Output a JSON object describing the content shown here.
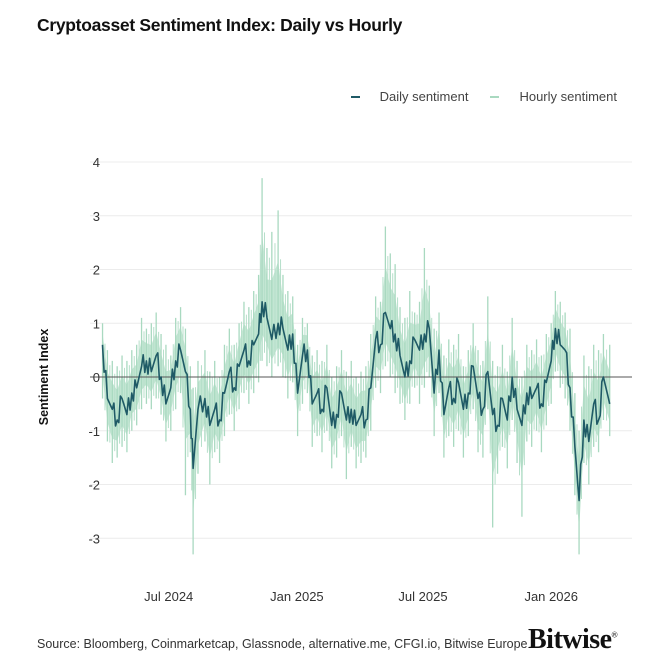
{
  "title": "Cryptoasset Sentiment Index: Daily vs Hourly",
  "legend": [
    {
      "label": "Daily sentiment",
      "color": "#1f5a66"
    },
    {
      "label": "Hourly sentiment",
      "color": "#a9d9c0"
    }
  ],
  "source": "Source: Bloomberg, Coinmarketcap, Glassnode, alternative.me, CFGI.io, Bitwise Europe",
  "logo": "Bitwise",
  "chart_data": {
    "type": "line",
    "title": "Cryptoasset Sentiment Index: Daily vs Hourly",
    "xlabel": "",
    "ylabel": "Sentiment Index",
    "ylim": [
      -3.7,
      4.3
    ],
    "yticks": [
      4,
      3,
      2,
      1,
      0,
      -1,
      -2,
      -3
    ],
    "xticks": [
      {
        "label": "Jul 2024",
        "date": "2024-07-01"
      },
      {
        "label": "Jan 2025",
        "date": "2025-01-01"
      },
      {
        "label": "Jul 2025",
        "date": "2025-07-01"
      },
      {
        "label": "Jan 2026",
        "date": "2026-01-01"
      }
    ],
    "xlim": [
      "2024-03-10",
      "2026-04-27"
    ],
    "grid": true,
    "legend_position": "top-right",
    "series_fields": [
      "date",
      "daily",
      "hourly_min",
      "hourly_max"
    ],
    "points": [
      [
        "2024-03-28",
        0.6,
        -0.4,
        1.0
      ],
      [
        "2024-04-04",
        -0.4,
        -1.2,
        0.5
      ],
      [
        "2024-04-11",
        -0.6,
        -1.6,
        0.3
      ],
      [
        "2024-04-18",
        -0.8,
        -1.5,
        0.2
      ],
      [
        "2024-04-25",
        -0.4,
        -1.3,
        0.4
      ],
      [
        "2024-05-02",
        -0.7,
        -1.4,
        0.3
      ],
      [
        "2024-05-09",
        -0.3,
        -1.0,
        0.5
      ],
      [
        "2024-05-16",
        -0.2,
        -0.9,
        0.6
      ],
      [
        "2024-05-23",
        0.2,
        -0.6,
        1.1
      ],
      [
        "2024-05-30",
        0.3,
        -0.5,
        0.9
      ],
      [
        "2024-06-06",
        0.1,
        -0.6,
        1.0
      ],
      [
        "2024-06-13",
        0.4,
        -0.4,
        1.2
      ],
      [
        "2024-06-20",
        0.0,
        -0.7,
        0.8
      ],
      [
        "2024-06-27",
        -0.5,
        -1.2,
        0.6
      ],
      [
        "2024-07-04",
        -0.2,
        -1.0,
        0.4
      ],
      [
        "2024-07-11",
        0.3,
        -0.6,
        1.1
      ],
      [
        "2024-07-18",
        0.5,
        -0.3,
        1.3
      ],
      [
        "2024-07-25",
        0.1,
        -2.2,
        0.9
      ],
      [
        "2024-08-01",
        -0.6,
        -1.4,
        0.2
      ],
      [
        "2024-08-05",
        -1.7,
        -3.3,
        -0.2
      ],
      [
        "2024-08-12",
        -0.6,
        -1.8,
        0.3
      ],
      [
        "2024-08-22",
        -0.4,
        -1.2,
        0.5
      ],
      [
        "2024-08-29",
        -0.9,
        -2.0,
        0.1
      ],
      [
        "2024-09-05",
        -0.6,
        -1.4,
        0.3
      ],
      [
        "2024-09-12",
        -0.8,
        -1.6,
        0.0
      ],
      [
        "2024-09-19",
        -0.3,
        -1.1,
        0.6
      ],
      [
        "2024-09-26",
        0.1,
        -0.7,
        0.9
      ],
      [
        "2024-10-03",
        -0.2,
        -1.0,
        0.6
      ],
      [
        "2024-10-10",
        0.2,
        -0.6,
        1.0
      ],
      [
        "2024-10-17",
        0.5,
        -0.3,
        1.4
      ],
      [
        "2024-10-24",
        0.3,
        -0.5,
        1.3
      ],
      [
        "2024-10-31",
        0.6,
        -0.3,
        1.6
      ],
      [
        "2024-11-07",
        0.8,
        -0.1,
        1.9
      ],
      [
        "2024-11-12",
        1.4,
        0.3,
        3.7
      ],
      [
        "2024-11-19",
        1.1,
        0.2,
        2.4
      ],
      [
        "2024-11-26",
        0.7,
        0.0,
        2.7
      ],
      [
        "2024-12-05",
        1.0,
        0.2,
        3.1
      ],
      [
        "2024-12-12",
        0.9,
        0.0,
        1.9
      ],
      [
        "2024-12-19",
        0.5,
        -0.4,
        1.6
      ],
      [
        "2024-12-26",
        0.8,
        -0.1,
        1.5
      ],
      [
        "2025-01-02",
        -0.3,
        -1.1,
        0.6
      ],
      [
        "2025-01-09",
        0.4,
        -0.5,
        1.1
      ],
      [
        "2025-01-16",
        0.5,
        -0.3,
        1.0
      ],
      [
        "2025-01-23",
        -0.5,
        -1.3,
        0.4
      ],
      [
        "2025-01-30",
        -0.3,
        -1.1,
        0.5
      ],
      [
        "2025-02-06",
        -0.6,
        -1.4,
        0.3
      ],
      [
        "2025-02-13",
        -0.2,
        -1.0,
        0.6
      ],
      [
        "2025-02-20",
        -0.9,
        -1.7,
        0.0
      ],
      [
        "2025-02-27",
        -0.7,
        -1.5,
        0.2
      ],
      [
        "2025-03-06",
        -0.3,
        -1.1,
        0.5
      ],
      [
        "2025-03-13",
        -0.8,
        -1.9,
        0.1
      ],
      [
        "2025-03-20",
        -0.6,
        -1.3,
        0.3
      ],
      [
        "2025-03-27",
        -0.9,
        -1.7,
        0.0
      ],
      [
        "2025-04-03",
        -0.7,
        -1.6,
        0.1
      ],
      [
        "2025-04-10",
        -0.8,
        -1.5,
        0.2
      ],
      [
        "2025-04-17",
        -0.2,
        -1.0,
        0.8
      ],
      [
        "2025-04-24",
        0.7,
        -0.2,
        1.5
      ],
      [
        "2025-05-01",
        0.6,
        -0.3,
        1.4
      ],
      [
        "2025-05-08",
        1.2,
        0.2,
        2.8
      ],
      [
        "2025-05-15",
        0.9,
        0.0,
        2.3
      ],
      [
        "2025-05-22",
        0.8,
        -0.3,
        2.1
      ],
      [
        "2025-05-29",
        0.4,
        -0.5,
        1.3
      ],
      [
        "2025-06-05",
        0.0,
        -0.8,
        1.1
      ],
      [
        "2025-06-12",
        0.3,
        -0.5,
        1.6
      ],
      [
        "2025-06-19",
        0.7,
        -0.2,
        1.2
      ],
      [
        "2025-06-26",
        0.5,
        -0.5,
        1.4
      ],
      [
        "2025-07-03",
        0.8,
        -0.2,
        2.4
      ],
      [
        "2025-07-10",
        0.9,
        0.0,
        1.7
      ],
      [
        "2025-07-17",
        -0.3,
        -1.1,
        0.9
      ],
      [
        "2025-07-24",
        0.5,
        -0.3,
        1.2
      ],
      [
        "2025-07-31",
        -0.7,
        -1.5,
        0.4
      ],
      [
        "2025-08-07",
        -0.2,
        -1.1,
        0.7
      ],
      [
        "2025-08-14",
        -0.4,
        -1.3,
        0.6
      ],
      [
        "2025-08-21",
        -0.1,
        -1.0,
        0.8
      ],
      [
        "2025-08-28",
        -0.6,
        -1.5,
        0.2
      ],
      [
        "2025-09-04",
        -0.3,
        -1.1,
        0.5
      ],
      [
        "2025-09-11",
        0.2,
        -0.6,
        1.0
      ],
      [
        "2025-09-18",
        -0.4,
        -1.4,
        0.5
      ],
      [
        "2025-09-25",
        -0.6,
        -1.5,
        0.3
      ],
      [
        "2025-10-02",
        0.1,
        -0.6,
        1.5
      ],
      [
        "2025-10-09",
        -0.7,
        -2.8,
        0.3
      ],
      [
        "2025-10-16",
        -0.9,
        -1.8,
        0.2
      ],
      [
        "2025-10-23",
        -0.4,
        -1.3,
        0.6
      ],
      [
        "2025-10-30",
        -0.8,
        -1.7,
        0.1
      ],
      [
        "2025-11-06",
        0.0,
        -0.8,
        1.1
      ],
      [
        "2025-11-13",
        -0.6,
        -1.6,
        0.3
      ],
      [
        "2025-11-20",
        -0.9,
        -2.6,
        0.0
      ],
      [
        "2025-11-27",
        -0.3,
        -1.2,
        0.6
      ],
      [
        "2025-12-04",
        -0.4,
        -1.3,
        0.5
      ],
      [
        "2025-12-11",
        -0.2,
        -1.0,
        0.7
      ],
      [
        "2025-12-18",
        -0.5,
        -1.4,
        0.4
      ],
      [
        "2025-12-25",
        -0.1,
        -0.9,
        0.8
      ],
      [
        "2026-01-01",
        0.3,
        -0.5,
        1.0
      ],
      [
        "2026-01-07",
        0.9,
        0.1,
        1.6
      ],
      [
        "2026-01-14",
        0.6,
        -0.2,
        1.4
      ],
      [
        "2026-01-21",
        0.5,
        -0.4,
        1.2
      ],
      [
        "2026-01-28",
        -0.2,
        -1.0,
        0.9
      ],
      [
        "2026-02-04",
        -1.3,
        -2.2,
        -0.3
      ],
      [
        "2026-02-10",
        -2.3,
        -3.3,
        -1.0
      ],
      [
        "2026-02-17",
        -0.8,
        -1.6,
        0.4
      ],
      [
        "2026-02-24",
        -1.2,
        -2.0,
        0.2
      ],
      [
        "2026-03-03",
        -0.5,
        -1.3,
        0.6
      ],
      [
        "2026-03-10",
        -0.8,
        -1.4,
        0.5
      ],
      [
        "2026-03-17",
        0.0,
        -0.8,
        0.8
      ],
      [
        "2026-03-26",
        -0.5,
        -1.1,
        0.6
      ]
    ]
  }
}
